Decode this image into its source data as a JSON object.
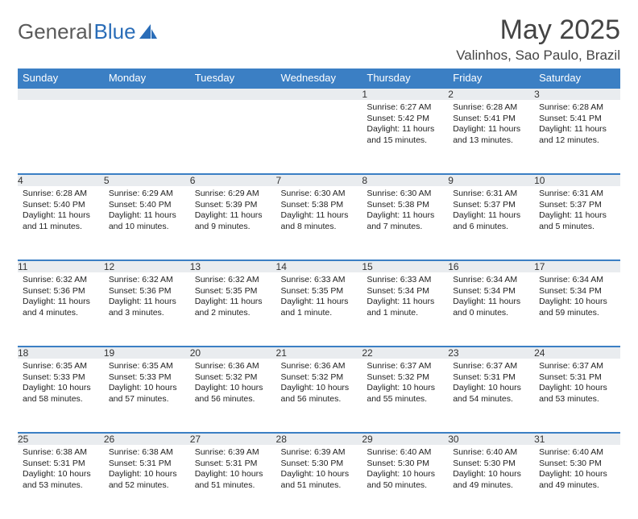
{
  "branding": {
    "word1": "General",
    "word2": "Blue"
  },
  "title": "May 2025",
  "location": "Valinhos, Sao Paulo, Brazil",
  "colors": {
    "header_bg": "#3b7fc4",
    "header_text": "#ffffff",
    "daynum_bg": "#e9ecef",
    "accent_border": "#3b7fc4",
    "page_bg": "#ffffff",
    "text": "#222222",
    "logo_gray": "#5a5a5a",
    "logo_blue": "#2a6db8"
  },
  "layout": {
    "type": "calendar-table",
    "columns": 7,
    "body_rows": 5,
    "cell_font_size_pt": 8,
    "header_font_size_pt": 10,
    "title_font_size_pt": 26,
    "location_font_size_pt": 13
  },
  "weekdays": [
    "Sunday",
    "Monday",
    "Tuesday",
    "Wednesday",
    "Thursday",
    "Friday",
    "Saturday"
  ],
  "weeks": [
    [
      null,
      null,
      null,
      null,
      {
        "n": "1",
        "sr": "Sunrise: 6:27 AM",
        "ss": "Sunset: 5:42 PM",
        "dl": "Daylight: 11 hours and 15 minutes."
      },
      {
        "n": "2",
        "sr": "Sunrise: 6:28 AM",
        "ss": "Sunset: 5:41 PM",
        "dl": "Daylight: 11 hours and 13 minutes."
      },
      {
        "n": "3",
        "sr": "Sunrise: 6:28 AM",
        "ss": "Sunset: 5:41 PM",
        "dl": "Daylight: 11 hours and 12 minutes."
      }
    ],
    [
      {
        "n": "4",
        "sr": "Sunrise: 6:28 AM",
        "ss": "Sunset: 5:40 PM",
        "dl": "Daylight: 11 hours and 11 minutes."
      },
      {
        "n": "5",
        "sr": "Sunrise: 6:29 AM",
        "ss": "Sunset: 5:40 PM",
        "dl": "Daylight: 11 hours and 10 minutes."
      },
      {
        "n": "6",
        "sr": "Sunrise: 6:29 AM",
        "ss": "Sunset: 5:39 PM",
        "dl": "Daylight: 11 hours and 9 minutes."
      },
      {
        "n": "7",
        "sr": "Sunrise: 6:30 AM",
        "ss": "Sunset: 5:38 PM",
        "dl": "Daylight: 11 hours and 8 minutes."
      },
      {
        "n": "8",
        "sr": "Sunrise: 6:30 AM",
        "ss": "Sunset: 5:38 PM",
        "dl": "Daylight: 11 hours and 7 minutes."
      },
      {
        "n": "9",
        "sr": "Sunrise: 6:31 AM",
        "ss": "Sunset: 5:37 PM",
        "dl": "Daylight: 11 hours and 6 minutes."
      },
      {
        "n": "10",
        "sr": "Sunrise: 6:31 AM",
        "ss": "Sunset: 5:37 PM",
        "dl": "Daylight: 11 hours and 5 minutes."
      }
    ],
    [
      {
        "n": "11",
        "sr": "Sunrise: 6:32 AM",
        "ss": "Sunset: 5:36 PM",
        "dl": "Daylight: 11 hours and 4 minutes."
      },
      {
        "n": "12",
        "sr": "Sunrise: 6:32 AM",
        "ss": "Sunset: 5:36 PM",
        "dl": "Daylight: 11 hours and 3 minutes."
      },
      {
        "n": "13",
        "sr": "Sunrise: 6:32 AM",
        "ss": "Sunset: 5:35 PM",
        "dl": "Daylight: 11 hours and 2 minutes."
      },
      {
        "n": "14",
        "sr": "Sunrise: 6:33 AM",
        "ss": "Sunset: 5:35 PM",
        "dl": "Daylight: 11 hours and 1 minute."
      },
      {
        "n": "15",
        "sr": "Sunrise: 6:33 AM",
        "ss": "Sunset: 5:34 PM",
        "dl": "Daylight: 11 hours and 1 minute."
      },
      {
        "n": "16",
        "sr": "Sunrise: 6:34 AM",
        "ss": "Sunset: 5:34 PM",
        "dl": "Daylight: 11 hours and 0 minutes."
      },
      {
        "n": "17",
        "sr": "Sunrise: 6:34 AM",
        "ss": "Sunset: 5:34 PM",
        "dl": "Daylight: 10 hours and 59 minutes."
      }
    ],
    [
      {
        "n": "18",
        "sr": "Sunrise: 6:35 AM",
        "ss": "Sunset: 5:33 PM",
        "dl": "Daylight: 10 hours and 58 minutes."
      },
      {
        "n": "19",
        "sr": "Sunrise: 6:35 AM",
        "ss": "Sunset: 5:33 PM",
        "dl": "Daylight: 10 hours and 57 minutes."
      },
      {
        "n": "20",
        "sr": "Sunrise: 6:36 AM",
        "ss": "Sunset: 5:32 PM",
        "dl": "Daylight: 10 hours and 56 minutes."
      },
      {
        "n": "21",
        "sr": "Sunrise: 6:36 AM",
        "ss": "Sunset: 5:32 PM",
        "dl": "Daylight: 10 hours and 56 minutes."
      },
      {
        "n": "22",
        "sr": "Sunrise: 6:37 AM",
        "ss": "Sunset: 5:32 PM",
        "dl": "Daylight: 10 hours and 55 minutes."
      },
      {
        "n": "23",
        "sr": "Sunrise: 6:37 AM",
        "ss": "Sunset: 5:31 PM",
        "dl": "Daylight: 10 hours and 54 minutes."
      },
      {
        "n": "24",
        "sr": "Sunrise: 6:37 AM",
        "ss": "Sunset: 5:31 PM",
        "dl": "Daylight: 10 hours and 53 minutes."
      }
    ],
    [
      {
        "n": "25",
        "sr": "Sunrise: 6:38 AM",
        "ss": "Sunset: 5:31 PM",
        "dl": "Daylight: 10 hours and 53 minutes."
      },
      {
        "n": "26",
        "sr": "Sunrise: 6:38 AM",
        "ss": "Sunset: 5:31 PM",
        "dl": "Daylight: 10 hours and 52 minutes."
      },
      {
        "n": "27",
        "sr": "Sunrise: 6:39 AM",
        "ss": "Sunset: 5:31 PM",
        "dl": "Daylight: 10 hours and 51 minutes."
      },
      {
        "n": "28",
        "sr": "Sunrise: 6:39 AM",
        "ss": "Sunset: 5:30 PM",
        "dl": "Daylight: 10 hours and 51 minutes."
      },
      {
        "n": "29",
        "sr": "Sunrise: 6:40 AM",
        "ss": "Sunset: 5:30 PM",
        "dl": "Daylight: 10 hours and 50 minutes."
      },
      {
        "n": "30",
        "sr": "Sunrise: 6:40 AM",
        "ss": "Sunset: 5:30 PM",
        "dl": "Daylight: 10 hours and 49 minutes."
      },
      {
        "n": "31",
        "sr": "Sunrise: 6:40 AM",
        "ss": "Sunset: 5:30 PM",
        "dl": "Daylight: 10 hours and 49 minutes."
      }
    ]
  ]
}
